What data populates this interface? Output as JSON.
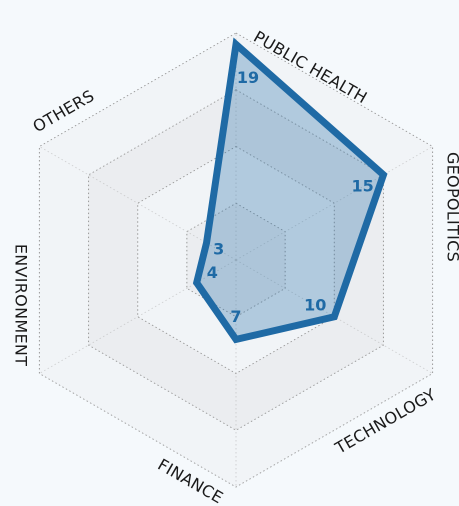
{
  "chart_data": {
    "type": "radar",
    "categories": [
      "PUBLIC HEALTH",
      "GEOPOLITICS",
      "TECHNOLOGY",
      "FINANCE",
      "ENVIRONMENT",
      "OTHERS"
    ],
    "values": [
      19,
      15,
      10,
      7,
      4,
      3
    ],
    "color": "#1f6aa5",
    "rlim": [
      0,
      20
    ],
    "rticks": [
      5,
      10,
      15,
      20
    ],
    "grid": true
  }
}
